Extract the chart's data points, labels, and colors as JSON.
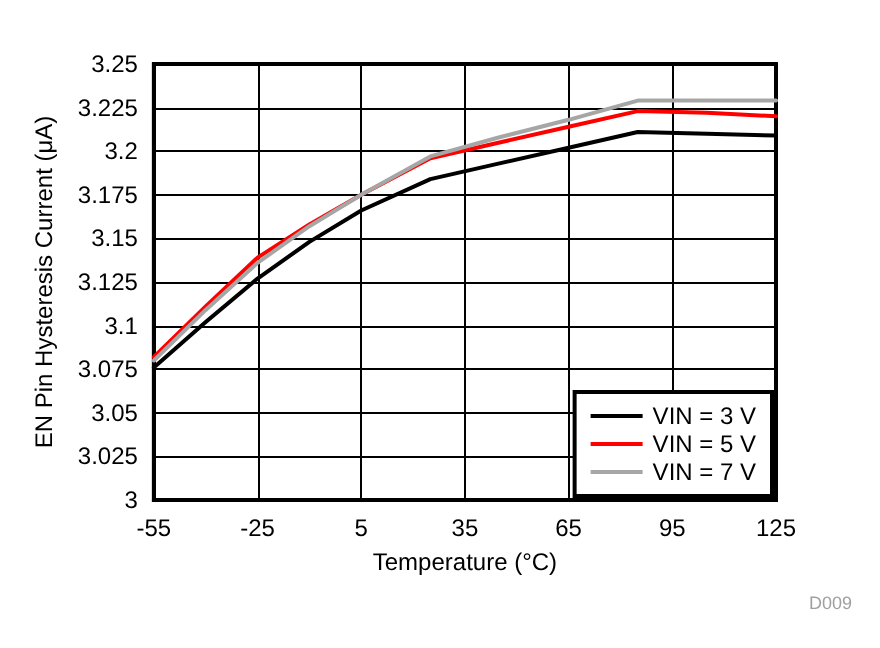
{
  "chart_data": {
    "type": "line",
    "xlabel": "Temperature (°C)",
    "ylabel": "EN Pin Hysteresis Current (μA)",
    "x": [
      -55,
      -40,
      -25,
      -10,
      5,
      25,
      45,
      65,
      85,
      105,
      125
    ],
    "series": [
      {
        "name": "VIN = 3 V",
        "color": "#000000",
        "values": [
          3.076,
          3.102,
          3.127,
          3.148,
          3.166,
          3.184,
          3.193,
          3.202,
          3.211,
          3.21,
          3.209
        ]
      },
      {
        "name": "VIN = 5 V",
        "color": "#ff0000",
        "values": [
          3.082,
          3.111,
          3.139,
          3.158,
          3.175,
          3.196,
          3.205,
          3.214,
          3.223,
          3.222,
          3.22
        ]
      },
      {
        "name": "VIN = 7 V",
        "color": "#a6a6a6",
        "values": [
          3.08,
          3.109,
          3.136,
          3.157,
          3.175,
          3.197,
          3.208,
          3.218,
          3.229,
          3.229,
          3.229
        ]
      }
    ],
    "xlim": [
      -55,
      125
    ],
    "xticks": [
      -55,
      -25,
      5,
      35,
      65,
      95,
      125
    ],
    "ylim": [
      3,
      3.25
    ],
    "yticks": [
      3,
      3.025,
      3.05,
      3.075,
      3.1,
      3.125,
      3.15,
      3.175,
      3.2,
      3.225,
      3.25
    ],
    "grid": true,
    "legend": "bottom right",
    "marker": "none",
    "line_style": "solid",
    "annotations": [
      "D009"
    ]
  }
}
